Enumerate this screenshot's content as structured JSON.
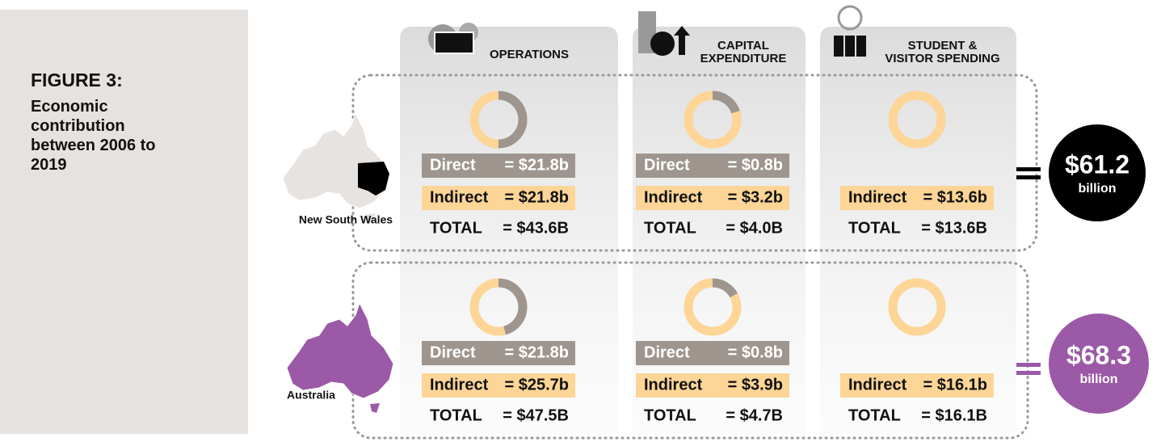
{
  "figure": {
    "label": "FIGURE 3:",
    "caption": "Economic contribution between 2006 to 2019"
  },
  "columns": [
    [
      "OPERATIONS"
    ],
    [
      "CAPITAL",
      "EXPENDITURE"
    ],
    [
      "STUDENT &",
      "VISITOR SPENDING"
    ]
  ],
  "regions": [
    {
      "name": "New South Wales",
      "total": "$61.2",
      "unit": "billion",
      "cells": [
        {
          "labels": [
            "Direct",
            "Indirect"
          ],
          "values": [
            21.8,
            21.8
          ],
          "value_labels": [
            "= $21.8b",
            "= $21.8b"
          ],
          "total_label": "TOTAL",
          "total": "= $43.6B"
        },
        {
          "labels": [
            "Direct",
            "Indirect"
          ],
          "values": [
            0.8,
            3.2
          ],
          "value_labels": [
            "= $0.8b",
            "= $3.2b"
          ],
          "total_label": "TOTAL",
          "total": "= $4.0B"
        },
        {
          "labels": [
            "Indirect"
          ],
          "values": [
            13.6
          ],
          "value_labels": [
            "= $13.6b"
          ],
          "total_label": "TOTAL",
          "total": "= $13.6B"
        }
      ]
    },
    {
      "name": "Australia",
      "total": "$68.3",
      "unit": "billion",
      "cells": [
        {
          "labels": [
            "Direct",
            "Indirect"
          ],
          "values": [
            21.8,
            25.7
          ],
          "value_labels": [
            "= $21.8b",
            "= $25.7b"
          ],
          "total_label": "TOTAL",
          "total": "= $47.5B"
        },
        {
          "labels": [
            "Direct",
            "Indirect"
          ],
          "values": [
            0.8,
            3.9
          ],
          "value_labels": [
            "= $0.8b",
            "= $3.9b"
          ],
          "total_label": "TOTAL",
          "total": "= $4.7B"
        },
        {
          "labels": [
            "Indirect"
          ],
          "values": [
            16.1
          ],
          "value_labels": [
            "= $16.1b"
          ],
          "total_label": "TOTAL",
          "total": "= $16.1B"
        }
      ]
    }
  ]
}
